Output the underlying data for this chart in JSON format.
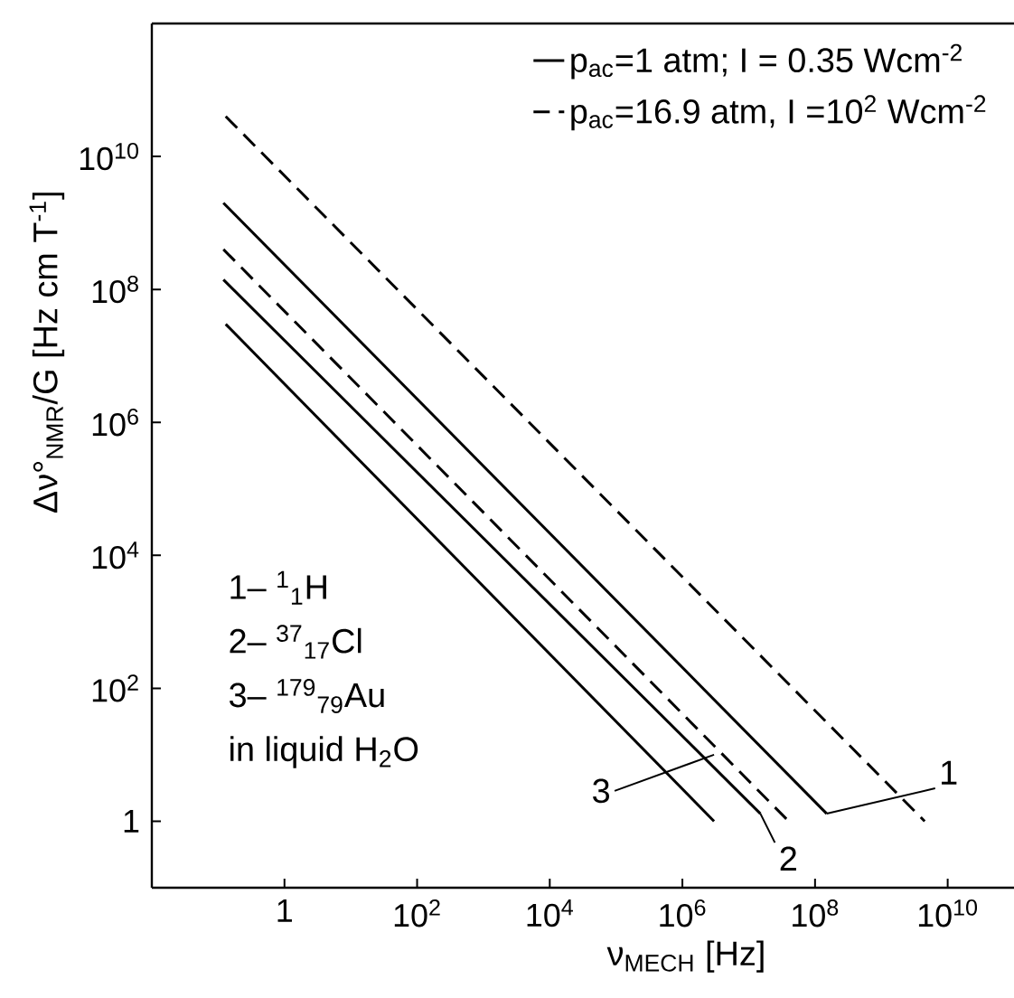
{
  "chart_data": {
    "type": "line",
    "log": "xy",
    "xlabel": "ν$_{MECH}$ [Hz]",
    "ylabel": "Δν°$_{NMR}$/G  [Hz cm T$^{-1}$]",
    "legend": "top right",
    "xlim": [
      0.01,
      100000000000.0
    ],
    "ylim": [
      0.1,
      1000000000000.0
    ],
    "xticks": [
      1,
      {
        "value": 100,
        "label": "10$^{2}$"
      },
      {
        "value": 10000,
        "label": "10$^{4}$"
      },
      {
        "value": 1000000,
        "label": "10$^{6}$"
      },
      {
        "value": 100000000,
        "label": "10$^{8}$"
      },
      {
        "value": 10000000000,
        "label": "10$^{10}$"
      }
    ],
    "yticks": [
      1,
      {
        "value": 100,
        "label": "10$^{2}$"
      },
      {
        "value": 10000,
        "label": "10$^{4}$"
      },
      {
        "value": 1000000,
        "label": "10$^{6}$"
      },
      {
        "value": 100000000,
        "label": "10$^{8}$"
      },
      {
        "value": 10000000000,
        "label": "10$^{10}$"
      }
    ],
    "series": [
      {
        "name": "p$_{ac}$=1 atm; I = 0.35 Wcm$^{-2}$",
        "color": "#000000",
        "line_style": "solid",
        "x": [
          0.12,
          150000000
        ],
        "values": [
          2000000000,
          1.3
        ]
      },
      {
        "name": "p$_{ac}$=16.9 atm, I =10$^{2}$ Wcm$^{-2}$",
        "color": "#000000",
        "line_style": "dashed",
        "x": [
          0.13,
          4500000000
        ],
        "values": [
          40000000000,
          1
        ]
      },
      {
        "color": "#000000",
        "line_style": "dashed",
        "x": [
          0.12,
          40000000
        ],
        "values": [
          400000000,
          1
        ]
      },
      {
        "color": "#000000",
        "line_style": "solid",
        "x": [
          0.12,
          15000000
        ],
        "values": [
          140000000,
          1.3
        ]
      },
      {
        "color": "#000000",
        "line_style": "solid",
        "x": [
          0.13,
          3000000
        ],
        "values": [
          30000000,
          1
        ]
      }
    ],
    "annotations": [
      "1– $^{1}$$_{1}$H",
      "2– $^{37}$$_{17}$Cl",
      "3– $^{179}$$_{79}$Au",
      "in liquid H$_{2}$O",
      {
        "text": "1",
        "x": 150000000,
        "y": 1.3
      },
      {
        "text": "2",
        "x": 15000000,
        "y": 1.3
      },
      {
        "text": "3",
        "x": 3000000,
        "y": 10
      }
    ]
  }
}
